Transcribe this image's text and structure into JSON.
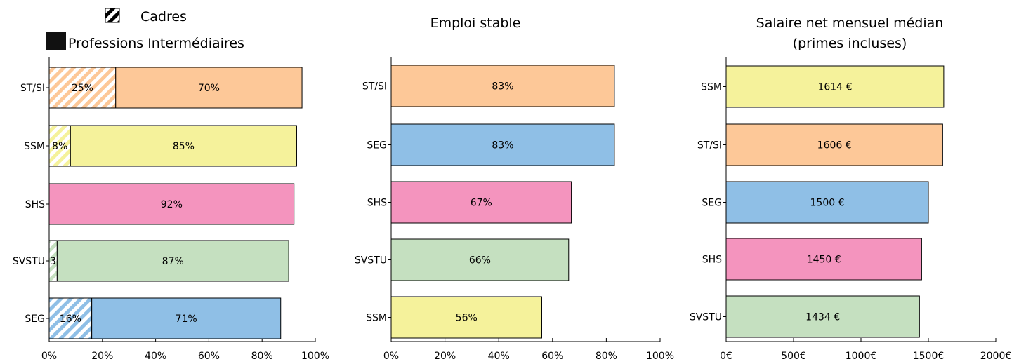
{
  "legend": [
    {
      "label": "Cadres",
      "pattern": "hatched"
    },
    {
      "label": "Professions Intermédiaires",
      "pattern": "solid"
    }
  ],
  "colors": {
    "ST/SI": "#fdc898",
    "SSM": "#f5f29b",
    "SHS": "#f494be",
    "SVSTU": "#c5e0c0",
    "SEG": "#8fbfe6"
  },
  "chart_data": [
    {
      "type": "bar",
      "orientation": "horizontal",
      "stacked": true,
      "title": "",
      "categories": [
        "ST/SI",
        "SSM",
        "SHS",
        "SVSTU",
        "SEG"
      ],
      "series": [
        {
          "name": "Cadres",
          "values": [
            25,
            8,
            0,
            3,
            16
          ],
          "labels": [
            "25%",
            "8%",
            "",
            "3",
            "16%"
          ]
        },
        {
          "name": "Professions Intermédiaires",
          "values": [
            70,
            85,
            92,
            87,
            71
          ],
          "labels": [
            "70%",
            "85%",
            "92%",
            "87%",
            "71%"
          ]
        }
      ],
      "xlim": [
        0,
        100
      ],
      "xticks": [
        "0%",
        "20%",
        "40%",
        "60%",
        "80%",
        "100%"
      ]
    },
    {
      "type": "bar",
      "orientation": "horizontal",
      "title": "Emploi stable",
      "categories": [
        "ST/SI",
        "SEG",
        "SHS",
        "SVSTU",
        "SSM"
      ],
      "values": [
        83,
        83,
        67,
        66,
        56
      ],
      "labels": [
        "83%",
        "83%",
        "67%",
        "66%",
        "56%"
      ],
      "xlim": [
        0,
        100
      ],
      "xticks": [
        "0%",
        "20%",
        "40%",
        "60%",
        "80%",
        "100%"
      ]
    },
    {
      "type": "bar",
      "orientation": "horizontal",
      "title": "Salaire net mensuel médian",
      "subtitle": "(primes incluses)",
      "categories": [
        "SSM",
        "ST/SI",
        "SEG",
        "SHS",
        "SVSTU"
      ],
      "values": [
        1614,
        1606,
        1500,
        1450,
        1434
      ],
      "labels": [
        "1614 €",
        "1606 €",
        "1500 €",
        "1450 €",
        "1434 €"
      ],
      "xlim": [
        0,
        2000
      ],
      "xticks": [
        "0€",
        "500€",
        "1000€",
        "1500€",
        "2000€"
      ]
    }
  ]
}
